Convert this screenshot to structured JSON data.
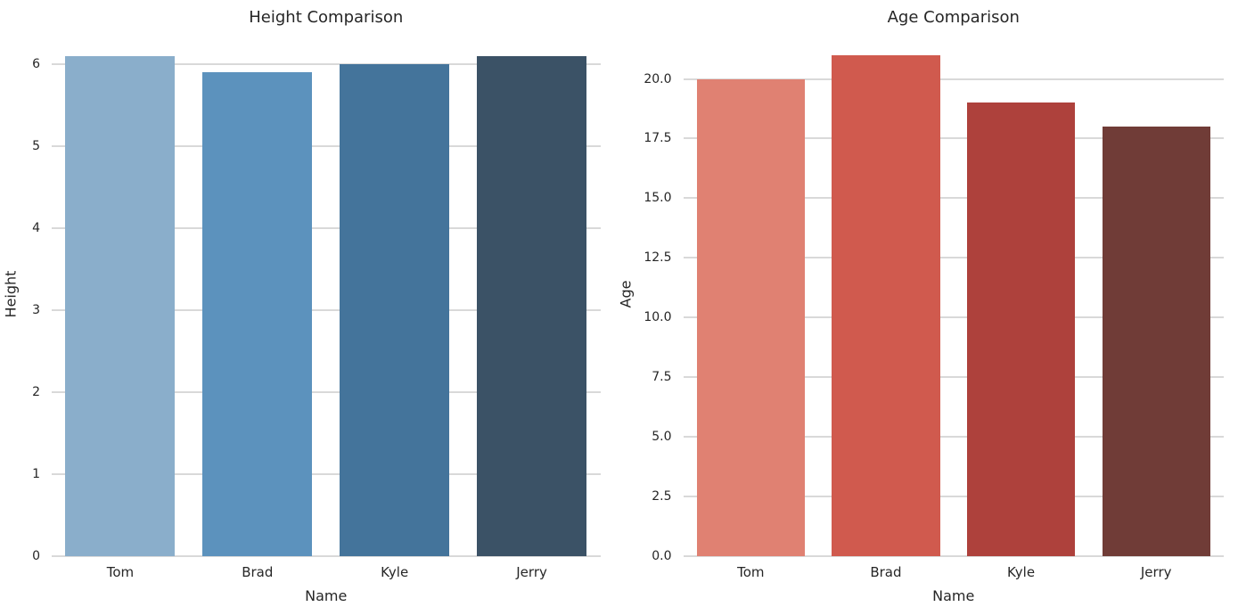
{
  "figure": {
    "background": "#ffffff",
    "text_color": "#262626",
    "grid_color": "#d9d9d9"
  },
  "chart_data": [
    {
      "type": "bar",
      "title": "Height Comparison",
      "xlabel": "Name",
      "ylabel": "Height",
      "categories": [
        "Tom",
        "Brad",
        "Kyle",
        "Jerry"
      ],
      "values": [
        6.1,
        5.9,
        6.0,
        6.1
      ],
      "colors": [
        "#8aaecb",
        "#5c92bd",
        "#44749b",
        "#3b5266"
      ],
      "ylim": [
        0,
        6.4
      ],
      "ytick_values": [
        0,
        1,
        2,
        3,
        4,
        5,
        6
      ],
      "ytick_labels": [
        "0",
        "1",
        "2",
        "3",
        "4",
        "5",
        "6"
      ],
      "grid": true,
      "legend": false,
      "bar_fraction": 0.8
    },
    {
      "type": "bar",
      "title": "Age Comparison",
      "xlabel": "Name",
      "ylabel": "Age",
      "categories": [
        "Tom",
        "Brad",
        "Kyle",
        "Jerry"
      ],
      "values": [
        20,
        21,
        19,
        18
      ],
      "colors": [
        "#e08172",
        "#d05a4e",
        "#ae413c",
        "#703c37"
      ],
      "ylim": [
        0,
        22.0
      ],
      "ytick_values": [
        0,
        2.5,
        5,
        7.5,
        10,
        12.5,
        15,
        17.5,
        20
      ],
      "ytick_labels": [
        "0.0",
        "2.5",
        "5.0",
        "7.5",
        "10.0",
        "12.5",
        "15.0",
        "17.5",
        "20.0"
      ],
      "grid": true,
      "legend": false,
      "bar_fraction": 0.8
    }
  ]
}
